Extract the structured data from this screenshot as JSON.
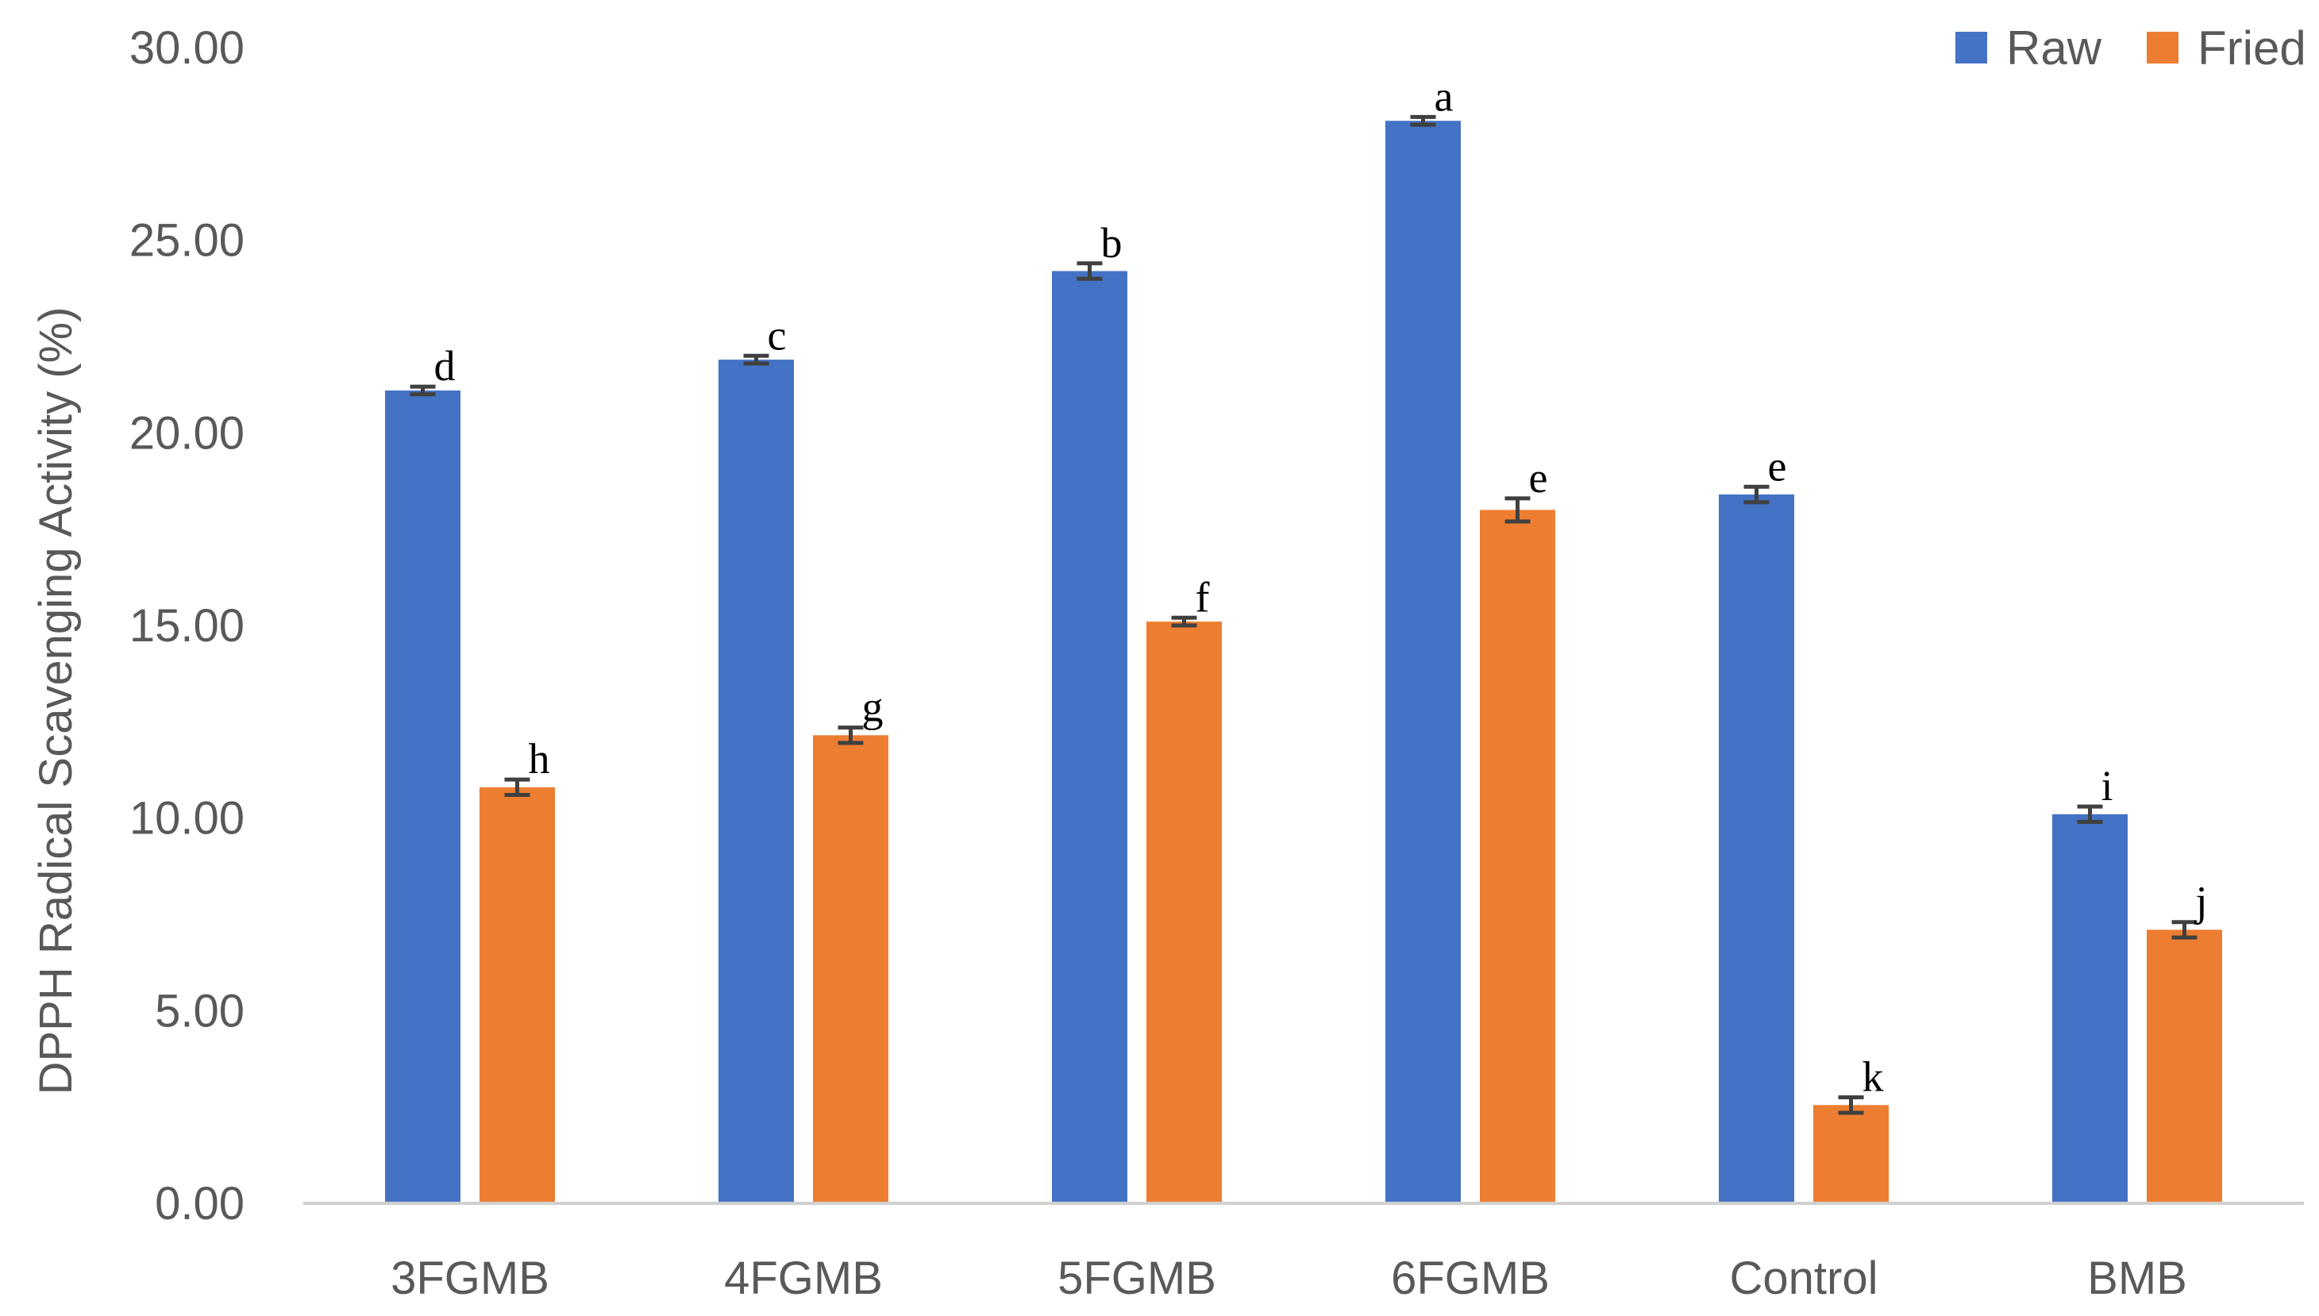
{
  "chart_data": {
    "type": "bar",
    "title": "",
    "xlabel": "",
    "ylabel": "DPPH Radical Scavenging Activity (%)",
    "ylim": [
      0,
      30
    ],
    "yticks": [
      "0.00",
      "5.00",
      "10.00",
      "15.00",
      "20.00",
      "25.00",
      "30.00"
    ],
    "categories": [
      "3FGMB",
      "4FGMB",
      "5FGMB",
      "6FGMB",
      "Control",
      "BMB"
    ],
    "series": [
      {
        "name": "Raw",
        "color": "#4472C4",
        "values": [
          21.1,
          21.9,
          24.2,
          28.1,
          18.4,
          10.1
        ],
        "errors": [
          0.1,
          0.1,
          0.2,
          0.1,
          0.2,
          0.2
        ],
        "labels": [
          "d",
          "c",
          "b",
          "a",
          "e",
          "i"
        ]
      },
      {
        "name": "Fried",
        "color": "#ED7D31",
        "values": [
          10.8,
          12.15,
          15.1,
          18.0,
          2.55,
          7.1
        ],
        "errors": [
          0.2,
          0.2,
          0.1,
          0.3,
          0.2,
          0.2
        ],
        "labels": [
          "h",
          "g",
          "f",
          "e",
          "k",
          "j"
        ]
      }
    ],
    "grid": false,
    "legend": "top-right"
  }
}
